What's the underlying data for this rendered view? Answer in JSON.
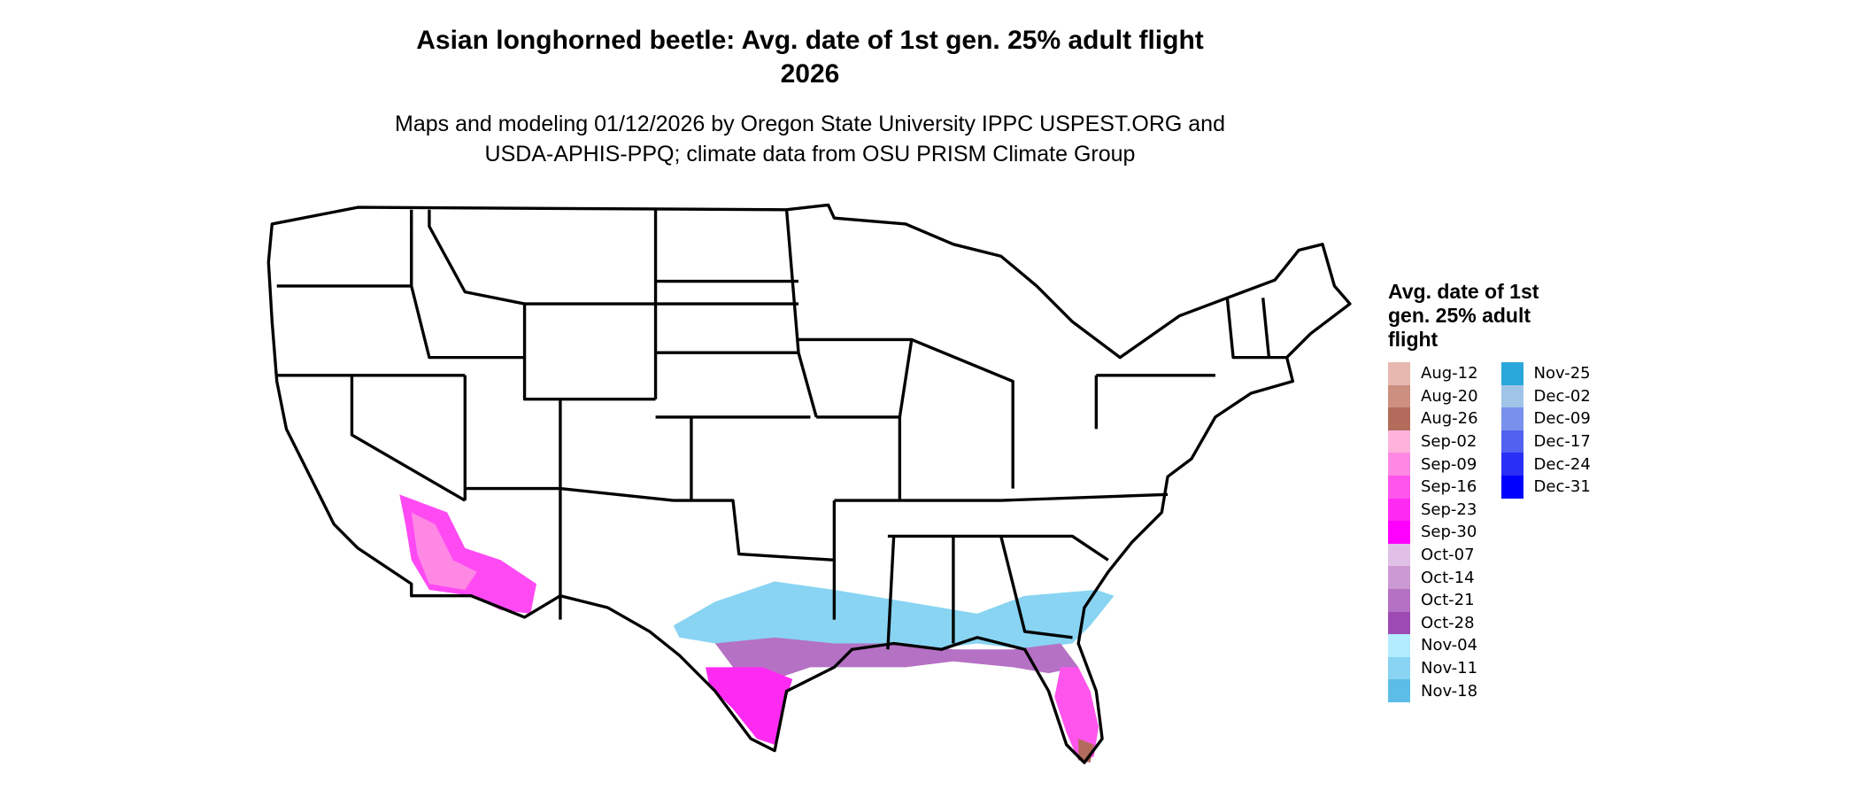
{
  "title_line1": "Asian longhorned beetle: Avg. date of 1st gen. 25% adult flight",
  "title_line2": "2026",
  "subtitle_line1": "Maps and modeling 01/12/2026 by Oregon State University IPPC USPEST.ORG and",
  "subtitle_line2": "USDA-APHIS-PPQ; climate data from OSU PRISM Climate Group",
  "legend": {
    "title": "Avg. date of 1st gen. 25% adult flight",
    "items": [
      {
        "label": "Aug-12",
        "color": "#E6B8AF"
      },
      {
        "label": "Aug-20",
        "color": "#CC8F80"
      },
      {
        "label": "Aug-26",
        "color": "#B36B5C"
      },
      {
        "label": "Sep-02",
        "color": "#FFB3DC"
      },
      {
        "label": "Sep-09",
        "color": "#FF88E4"
      },
      {
        "label": "Sep-16",
        "color": "#FF55EC"
      },
      {
        "label": "Sep-23",
        "color": "#FF2AF2"
      },
      {
        "label": "Sep-30",
        "color": "#FF00FF"
      },
      {
        "label": "Oct-07",
        "color": "#E0C0E6"
      },
      {
        "label": "Oct-14",
        "color": "#CC99D4"
      },
      {
        "label": "Oct-21",
        "color": "#B571C4"
      },
      {
        "label": "Oct-28",
        "color": "#9E4AB5"
      },
      {
        "label": "Nov-04",
        "color": "#B3ECFF"
      },
      {
        "label": "Nov-11",
        "color": "#88D4F2"
      },
      {
        "label": "Nov-18",
        "color": "#5CBDE6"
      },
      {
        "label": "Nov-25",
        "color": "#2AA8DC"
      },
      {
        "label": "Dec-02",
        "color": "#A0C4E8"
      },
      {
        "label": "Dec-09",
        "color": "#7891EC"
      },
      {
        "label": "Dec-17",
        "color": "#5162F0"
      },
      {
        "label": "Dec-24",
        "color": "#2A2FF5"
      },
      {
        "label": "Dec-31",
        "color": "#0000FF"
      }
    ]
  }
}
